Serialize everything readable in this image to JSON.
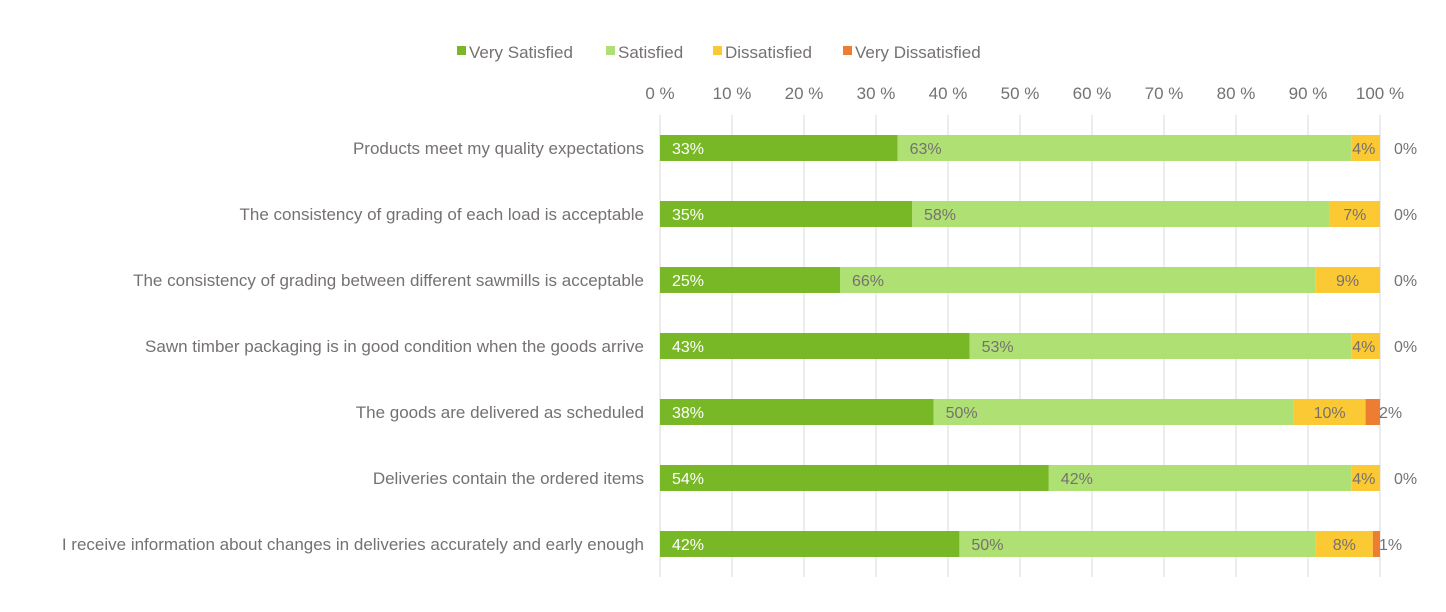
{
  "chart_data": {
    "type": "bar",
    "orientation": "horizontal",
    "stacked": "percent",
    "title": "",
    "xlabel": "",
    "ylabel": "",
    "xlim": [
      0,
      100
    ],
    "x_ticks": [
      "0 %",
      "10 %",
      "20 %",
      "30 %",
      "40 %",
      "50 %",
      "60 %",
      "70 %",
      "80 %",
      "90 %",
      "100 %"
    ],
    "grid": true,
    "legend_position": "top",
    "categories": [
      "Products meet my quality expectations",
      "The consistency of grading of each load is acceptable",
      "The consistency of grading between different sawmills is acceptable",
      "Sawn timber packaging is in good condition when the goods arrive",
      "The goods are delivered as scheduled",
      "Deliveries contain the ordered items",
      "I receive information about changes in deliveries accurately and early enough"
    ],
    "series": [
      {
        "name": "Very Satisfied",
        "color": "#78B826",
        "label_color": "#ffffff",
        "values": [
          33,
          35,
          25,
          43,
          38,
          54,
          42
        ],
        "labels": [
          "33%",
          "35%",
          "25%",
          "43%",
          "38%",
          "54%",
          "42%"
        ]
      },
      {
        "name": "Satisfied",
        "color": "#AEE073",
        "label_color": "#767171",
        "values": [
          63,
          58,
          66,
          53,
          50,
          42,
          50
        ],
        "labels": [
          "63%",
          "58%",
          "66%",
          "53%",
          "50%",
          "42%",
          "50%"
        ]
      },
      {
        "name": "Dissatisfied",
        "color": "#FAC933",
        "label_color": "#767171",
        "values": [
          4,
          7,
          9,
          4,
          10,
          4,
          8
        ],
        "labels": [
          "4%",
          "7%",
          "9%",
          "4%",
          "10%",
          "4%",
          "8%"
        ]
      },
      {
        "name": "Very Dissatisfied",
        "color": "#ED7D31",
        "label_color": "#767171",
        "values": [
          0,
          0,
          0,
          0,
          2,
          0,
          1
        ],
        "labels": [
          "0%",
          "0%",
          "0%",
          "0%",
          "2%",
          "0%",
          "1%"
        ]
      }
    ]
  }
}
